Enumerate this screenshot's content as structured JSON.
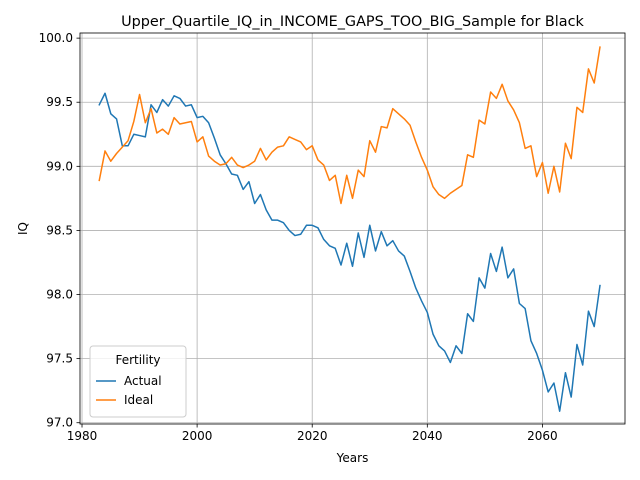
{
  "chart_data": {
    "type": "line",
    "title": "Upper_Quartile_IQ_in_INCOME_GAPS_TOO_BIG_Sample for Black",
    "xlabel": "Years",
    "ylabel": "IQ",
    "xlim": [
      1979.65,
      2074.35
    ],
    "ylim": [
      96.99,
      100.04
    ],
    "xticks": [
      1980,
      2000,
      2020,
      2040,
      2060
    ],
    "yticks": [
      97.0,
      97.5,
      98.0,
      98.5,
      99.0,
      99.5,
      100.0
    ],
    "xtick_labels": [
      "1980",
      "2000",
      "2020",
      "2040",
      "2060"
    ],
    "ytick_labels": [
      "97.0",
      "97.5",
      "98.0",
      "98.5",
      "99.0",
      "99.5",
      "100.0"
    ],
    "grid": true,
    "legend": {
      "title": "Fertility",
      "position": "lower-left"
    },
    "series": [
      {
        "name": "Actual",
        "color": "#1f77b4",
        "x": [
          1983,
          1984,
          1985,
          1986,
          1987,
          1988,
          1989,
          1990,
          1991,
          1992,
          1993,
          1994,
          1995,
          1996,
          1997,
          1998,
          1999,
          2000,
          2001,
          2002,
          2003,
          2004,
          2005,
          2006,
          2007,
          2008,
          2009,
          2010,
          2011,
          2012,
          2013,
          2014,
          2015,
          2016,
          2017,
          2018,
          2019,
          2020,
          2021,
          2022,
          2023,
          2024,
          2025,
          2026,
          2027,
          2028,
          2029,
          2030,
          2031,
          2032,
          2033,
          2034,
          2035,
          2036,
          2037,
          2038,
          2039,
          2040,
          2041,
          2042,
          2043,
          2044,
          2045,
          2046,
          2047,
          2048,
          2049,
          2050,
          2051,
          2052,
          2053,
          2054,
          2055,
          2056,
          2057,
          2058,
          2059,
          2060,
          2061,
          2062,
          2063,
          2064,
          2065,
          2066,
          2067,
          2068,
          2069,
          2070
        ],
        "values": [
          99.48,
          99.57,
          99.41,
          99.37,
          99.16,
          99.16,
          99.25,
          99.24,
          99.23,
          99.48,
          99.42,
          99.52,
          99.47,
          99.55,
          99.53,
          99.47,
          99.48,
          99.38,
          99.39,
          99.34,
          99.22,
          99.09,
          99.02,
          98.94,
          98.93,
          98.82,
          98.88,
          98.71,
          98.78,
          98.66,
          98.58,
          98.58,
          98.56,
          98.5,
          98.46,
          98.47,
          98.54,
          98.54,
          98.52,
          98.43,
          98.38,
          98.36,
          98.23,
          98.4,
          98.22,
          98.48,
          98.29,
          98.54,
          98.34,
          98.49,
          98.38,
          98.42,
          98.34,
          98.3,
          98.18,
          98.05,
          97.95,
          97.86,
          97.69,
          97.6,
          97.56,
          97.47,
          97.6,
          97.54,
          97.85,
          97.79,
          98.13,
          98.05,
          98.32,
          98.18,
          98.37,
          98.13,
          98.2,
          97.93,
          97.89,
          97.64,
          97.54,
          97.41,
          97.24,
          97.31,
          97.09,
          97.39,
          97.2,
          97.61,
          97.45,
          97.87,
          97.75,
          98.07
        ]
      },
      {
        "name": "Ideal",
        "color": "#ff7f0e",
        "x": [
          1983,
          1984,
          1985,
          1986,
          1987,
          1988,
          1989,
          1990,
          1991,
          1992,
          1993,
          1994,
          1995,
          1996,
          1997,
          1998,
          1999,
          2000,
          2001,
          2002,
          2003,
          2004,
          2005,
          2006,
          2007,
          2008,
          2009,
          2010,
          2011,
          2012,
          2013,
          2014,
          2015,
          2016,
          2017,
          2018,
          2019,
          2020,
          2021,
          2022,
          2023,
          2024,
          2025,
          2026,
          2027,
          2028,
          2029,
          2030,
          2031,
          2032,
          2033,
          2034,
          2035,
          2036,
          2037,
          2038,
          2039,
          2040,
          2041,
          2042,
          2043,
          2044,
          2045,
          2046,
          2047,
          2048,
          2049,
          2050,
          2051,
          2052,
          2053,
          2054,
          2055,
          2056,
          2057,
          2058,
          2059,
          2060,
          2061,
          2062,
          2063,
          2064,
          2065,
          2066,
          2067,
          2068,
          2069,
          2070
        ],
        "values": [
          98.89,
          99.12,
          99.04,
          99.1,
          99.15,
          99.2,
          99.35,
          99.56,
          99.34,
          99.45,
          99.26,
          99.29,
          99.25,
          99.38,
          99.33,
          99.34,
          99.35,
          99.19,
          99.23,
          99.08,
          99.04,
          99.01,
          99.02,
          99.07,
          99.01,
          98.99,
          99.01,
          99.04,
          99.14,
          99.05,
          99.11,
          99.15,
          99.16,
          99.23,
          99.21,
          99.19,
          99.13,
          99.16,
          99.05,
          99.01,
          98.89,
          98.93,
          98.71,
          98.93,
          98.75,
          98.97,
          98.92,
          99.2,
          99.11,
          99.31,
          99.3,
          99.45,
          99.41,
          99.37,
          99.32,
          99.19,
          99.07,
          98.97,
          98.84,
          98.78,
          98.75,
          98.79,
          98.82,
          98.85,
          99.09,
          99.07,
          99.36,
          99.33,
          99.58,
          99.53,
          99.64,
          99.51,
          99.44,
          99.34,
          99.14,
          99.16,
          98.92,
          99.03,
          98.79,
          99.0,
          98.8,
          99.18,
          99.06,
          99.46,
          99.42,
          99.76,
          99.65,
          99.93
        ]
      }
    ]
  }
}
